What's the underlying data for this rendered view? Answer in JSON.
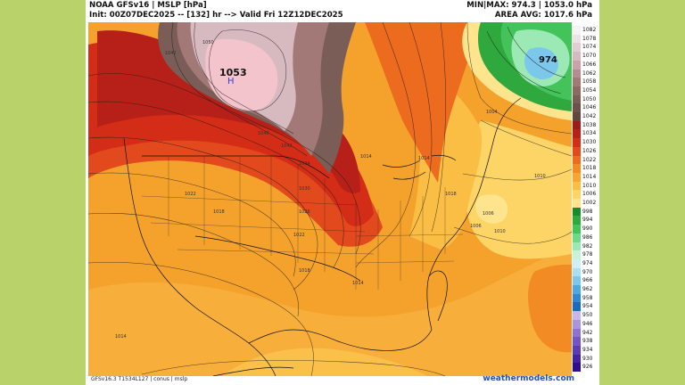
{
  "header": {
    "title": "NOAA GFSv16 | MSLP [hPa]",
    "init": "Init: 00Z07DEC2025 -- [132] hr --> Valid Fri 12Z12DEC2025",
    "minmax": "MIN|MAX: 974.3 | 1053.0 hPa",
    "area_avg": "AREA AVG: 1017.6 hPa"
  },
  "map": {
    "high_value": "1053",
    "high_marker": "H",
    "low_value": "974",
    "contour_labels": [
      "1050",
      "1042",
      "1046",
      "1042",
      "1034",
      "1030",
      "1026",
      "1022",
      "1018",
      "1014",
      "1022",
      "1018",
      "1014",
      "1014",
      "1018",
      "1006",
      "1010",
      "1006",
      "1010",
      "1004",
      "1014"
    ]
  },
  "colorbar": {
    "labels": [
      "1082",
      "1078",
      "1074",
      "1070",
      "1066",
      "1062",
      "1058",
      "1054",
      "1050",
      "1046",
      "1042",
      "1038",
      "1034",
      "1030",
      "1026",
      "1022",
      "1018",
      "1014",
      "1010",
      "1006",
      "1002",
      "998",
      "994",
      "990",
      "986",
      "982",
      "978",
      "974",
      "970",
      "966",
      "962",
      "958",
      "954",
      "950",
      "946",
      "942",
      "938",
      "934",
      "930",
      "926"
    ],
    "colors": [
      "#f7f2f4",
      "#ede2e6",
      "#e2cdd3",
      "#d7b9c0",
      "#c9a3a9",
      "#b58c8f",
      "#a27977",
      "#8b6a62",
      "#7a5d56",
      "#6c5049",
      "#5f463f",
      "#9a1d19",
      "#b72018",
      "#d32c17",
      "#e2491c",
      "#ed6b1f",
      "#f38b25",
      "#f8a531",
      "#fbbe45",
      "#fdd466",
      "#fee58d",
      "#1b8a2f",
      "#2fa83e",
      "#44c35a",
      "#6ed98a",
      "#9de9b6",
      "#c6f3da",
      "#cfeff7",
      "#a8dff2",
      "#7cc7ec",
      "#4fa8e0",
      "#2f89d2",
      "#1f68c0",
      "#c6b6ea",
      "#a994de",
      "#8d74d2",
      "#7256c3",
      "#5a3cb4",
      "#4224a2",
      "#2b0f8c"
    ]
  },
  "footer": {
    "left": "GFSv16.3 T1534L127 | conus | mslp",
    "right": "weathermodels.com"
  }
}
